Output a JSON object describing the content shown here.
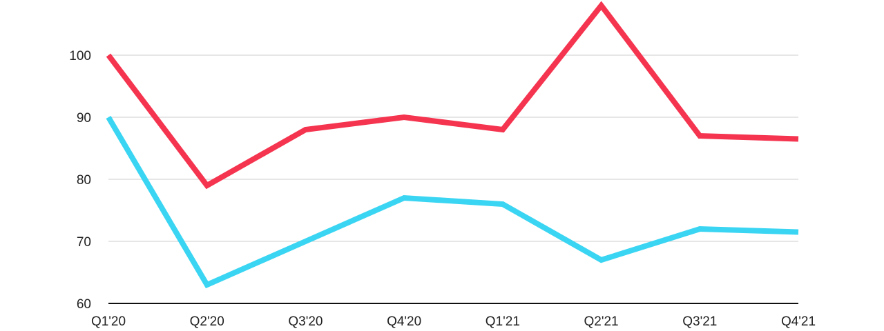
{
  "chart_data": {
    "type": "line",
    "title": "",
    "xlabel": "",
    "ylabel": "",
    "categories": [
      "Q1'20",
      "Q2'20",
      "Q3'20",
      "Q4'20",
      "Q1'21",
      "Q2'21",
      "Q3'21",
      "Q4'21"
    ],
    "ylim": [
      60,
      108
    ],
    "yticks": [
      60,
      70,
      80,
      90,
      100
    ],
    "grid": "horizontal",
    "legend": "none",
    "series": [
      {
        "color": "#f5344f",
        "values": [
          100,
          79,
          88,
          90,
          88,
          108,
          87,
          86.5
        ]
      },
      {
        "color": "#3ad5f2",
        "values": [
          90,
          63,
          70,
          77,
          76,
          67,
          72,
          71.5
        ]
      }
    ]
  }
}
